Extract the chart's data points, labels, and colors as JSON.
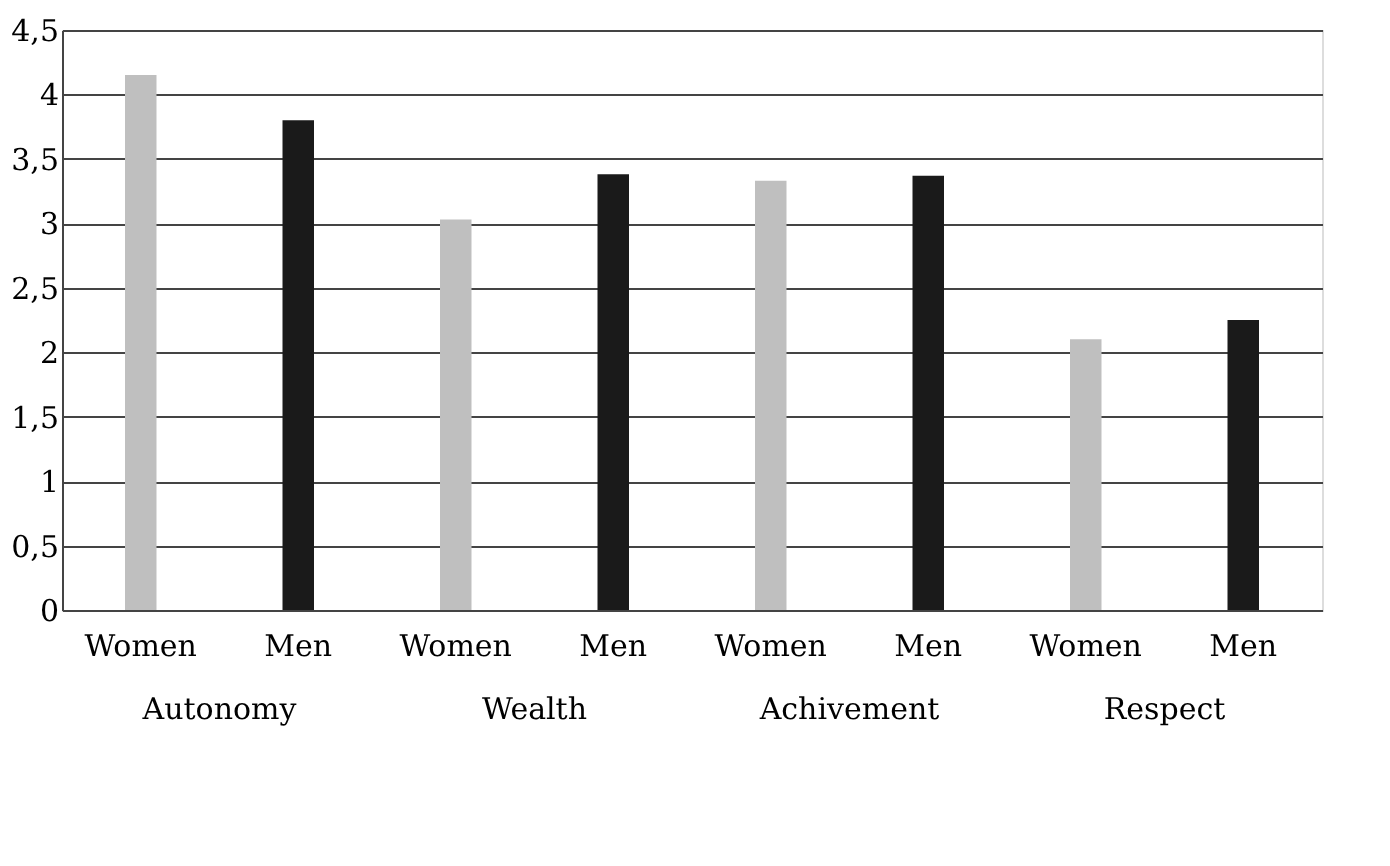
{
  "chart_data": {
    "type": "bar",
    "categories": [
      "Autonomy",
      "Wealth",
      "Achivement",
      "Respect"
    ],
    "series": [
      {
        "name": "Women",
        "color": "#bfbfbf",
        "values": [
          4.15,
          3.03,
          3.33,
          2.1
        ]
      },
      {
        "name": "Men",
        "color": "#1a1a1a",
        "values": [
          3.8,
          3.38,
          3.37,
          2.25
        ]
      }
    ],
    "ylim": [
      0,
      4.5
    ],
    "yticks": [
      0,
      {
        "value": 0.5,
        "label": "0,5"
      },
      1,
      {
        "value": 1.5,
        "label": "1,5"
      },
      2,
      {
        "value": 2.5,
        "label": "2,5"
      },
      3,
      {
        "value": 3.5,
        "label": "3,5"
      },
      4,
      {
        "value": 4.5,
        "label": "4,5"
      }
    ],
    "grid": "y",
    "legend": false
  }
}
